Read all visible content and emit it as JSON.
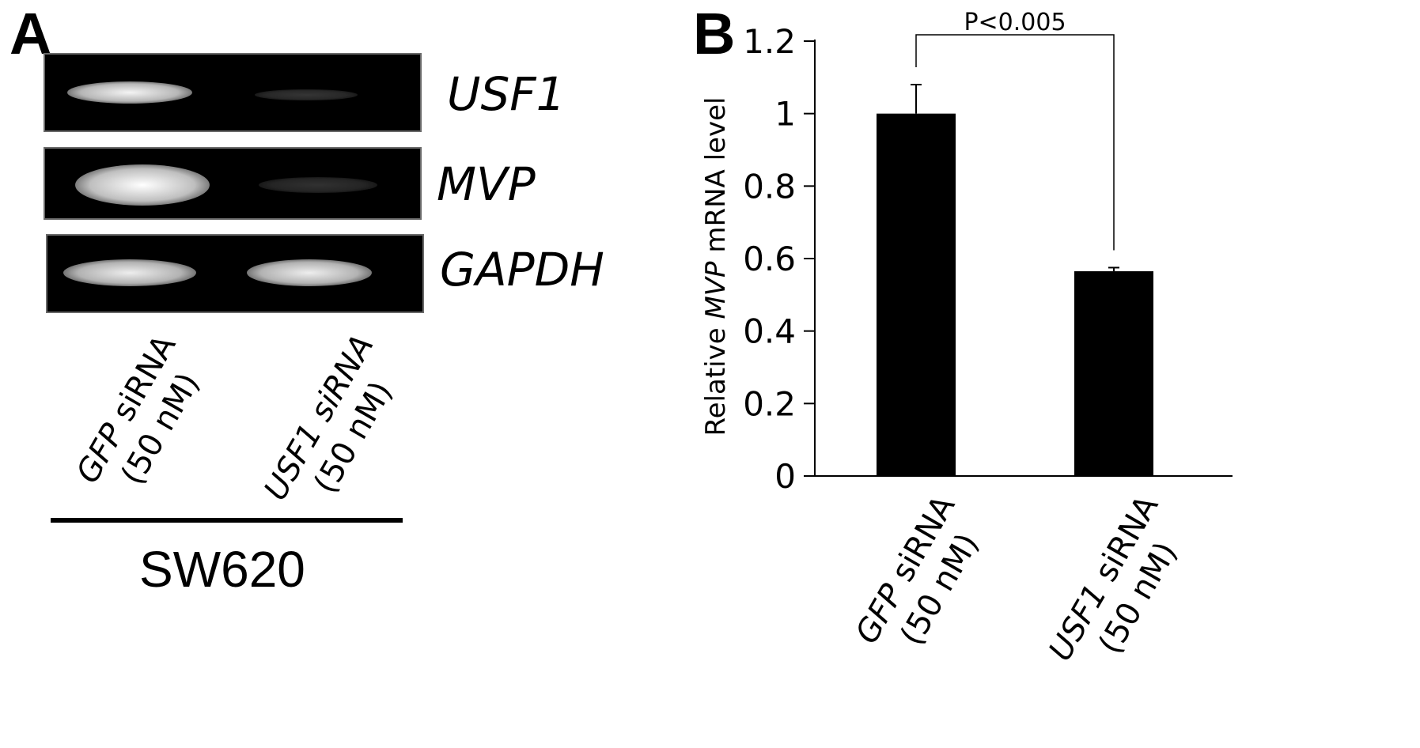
{
  "panels": {
    "a": {
      "letter": "A",
      "gel_rows": [
        {
          "gene": "USF1",
          "bands": [
            0.95,
            0.06
          ]
        },
        {
          "gene": "MVP",
          "bands": [
            1.0,
            0.04
          ]
        },
        {
          "gene": "GAPDH",
          "bands": [
            0.92,
            0.92
          ]
        }
      ],
      "lanes": [
        {
          "name_italic": "GFP",
          "name_rest": " siRNA",
          "conc": "(50 nM)"
        },
        {
          "name_italic": "USF1 siRNA",
          "name_rest": "",
          "conc": "(50 nM)"
        }
      ],
      "cell_line": "SW620"
    },
    "b": {
      "letter": "B"
    }
  },
  "chart_data": {
    "type": "bar",
    "categories": [
      {
        "name_italic": "GFP",
        "name_rest": " siRNA",
        "conc": "(50 nM)"
      },
      {
        "name_italic": "USF1",
        "name_rest": " siRNA",
        "conc": "(50 nM)"
      }
    ],
    "values": [
      1.0,
      0.565
    ],
    "error": [
      0.08,
      0.01
    ],
    "ylabel": {
      "pre": "Relative ",
      "italic": "MVP",
      "post": " mRNA level"
    },
    "ylim": [
      0,
      1.2
    ],
    "yticks": [
      0,
      0.2,
      0.4,
      0.6,
      0.8,
      1,
      1.2
    ],
    "significance": {
      "between": [
        0,
        1
      ],
      "label": "P<0.005"
    },
    "bar_color": "#000000",
    "grid": false,
    "legend": "none"
  }
}
